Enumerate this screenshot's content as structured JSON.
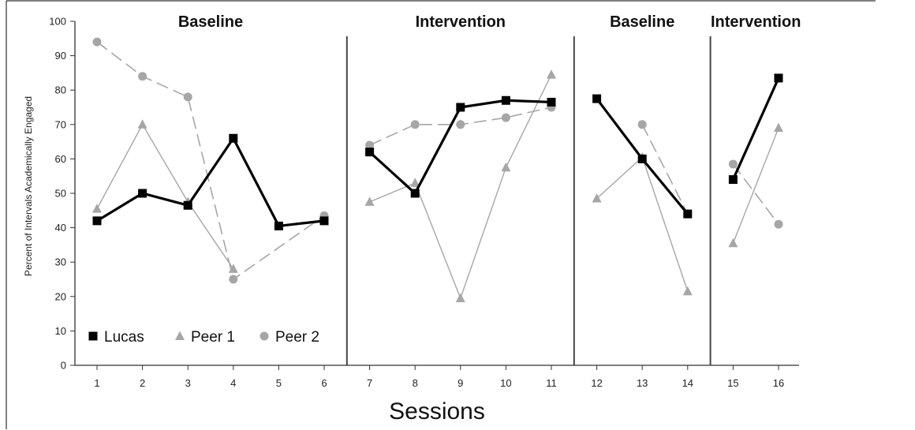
{
  "chart_data": {
    "type": "line",
    "title": "",
    "xlabel": "Sessions",
    "ylabel": "Percent of Intervals Academically Engaged",
    "ylim": [
      0,
      100
    ],
    "yticks": [
      0,
      10,
      20,
      30,
      40,
      50,
      60,
      70,
      80,
      90,
      100
    ],
    "xticks": [
      1,
      2,
      3,
      4,
      5,
      6,
      7,
      8,
      9,
      10,
      11,
      12,
      13,
      14,
      15,
      16
    ],
    "grid": false,
    "legend_position": "bottom-left",
    "phases": [
      {
        "label": "Baseline",
        "sessions": [
          1,
          6
        ]
      },
      {
        "label": "Intervention",
        "sessions": [
          7,
          11
        ]
      },
      {
        "label": "Baseline",
        "sessions": [
          12,
          14
        ]
      },
      {
        "label": "Intervention",
        "sessions": [
          15,
          16
        ]
      }
    ],
    "series": [
      {
        "name": "Lucas",
        "marker": "square",
        "color": "#000000",
        "line_style": "solid-thick",
        "segments": [
          [
            [
              1,
              42
            ],
            [
              2,
              50
            ],
            [
              3,
              46.5
            ],
            [
              4,
              66
            ],
            [
              5,
              40.5
            ],
            [
              6,
              42
            ]
          ],
          [
            [
              7,
              62
            ],
            [
              8,
              50
            ],
            [
              9,
              75
            ],
            [
              10,
              77
            ],
            [
              11,
              76.5
            ]
          ],
          [
            [
              12,
              77.5
            ],
            [
              13,
              60
            ],
            [
              14,
              44
            ]
          ],
          [
            [
              15,
              54
            ],
            [
              16,
              83.5
            ]
          ]
        ]
      },
      {
        "name": "Peer 1",
        "marker": "triangle",
        "color": "#a6a6a6",
        "line_style": "solid-thin",
        "segments": [
          [
            [
              1,
              45.5
            ],
            [
              2,
              70
            ],
            [
              3,
              47.5
            ],
            [
              4,
              28
            ]
          ],
          [
            [
              7,
              47.5
            ],
            [
              8,
              53
            ],
            [
              9,
              19.5
            ],
            [
              10,
              57.5
            ],
            [
              11,
              84.5
            ]
          ],
          [
            [
              12,
              48.5
            ],
            [
              13,
              60.5
            ],
            [
              14,
              21.5
            ]
          ],
          [
            [
              15,
              35.5
            ],
            [
              16,
              69
            ]
          ]
        ]
      },
      {
        "name": "Peer 2",
        "marker": "circle",
        "color": "#a6a6a6",
        "line_style": "dashed",
        "segments": [
          [
            [
              1,
              94
            ],
            [
              2,
              84
            ],
            [
              3,
              78
            ],
            [
              4,
              25
            ],
            [
              6,
              43.5
            ]
          ],
          [
            [
              7,
              64
            ],
            [
              8,
              70
            ],
            [
              9,
              70
            ],
            [
              10,
              72
            ],
            [
              11,
              75
            ]
          ],
          [
            [
              13,
              70
            ],
            [
              14,
              44
            ]
          ],
          [
            [
              15,
              58.5
            ],
            [
              16,
              41
            ]
          ]
        ]
      }
    ]
  }
}
